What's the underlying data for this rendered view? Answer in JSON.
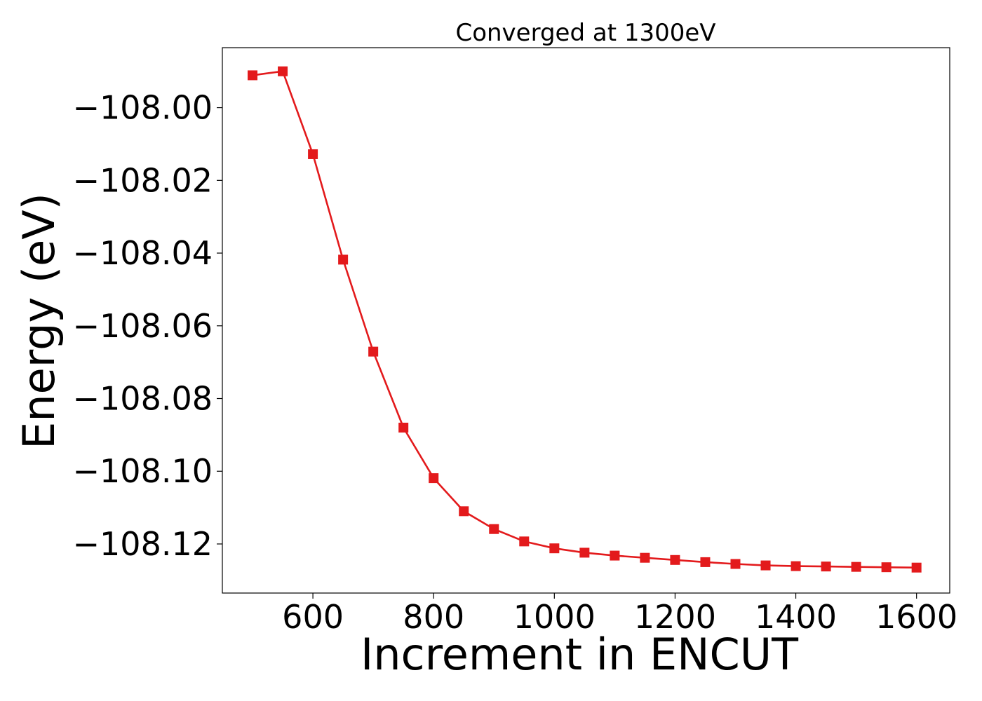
{
  "chart_data": {
    "type": "line",
    "title": "Converged at 1300eV",
    "xlabel": "Increment in ENCUT",
    "ylabel": "Energy (eV)",
    "xlim": [
      450,
      1655
    ],
    "ylim": [
      -108.1335,
      -107.9835
    ],
    "x_ticks": [
      600,
      800,
      1000,
      1200,
      1400,
      1600
    ],
    "x_tick_labels": [
      "600",
      "800",
      "1000",
      "1200",
      "1400",
      "1600"
    ],
    "y_ticks": [
      -108.0,
      -108.02,
      -108.04,
      -108.06,
      -108.08,
      -108.1,
      -108.12
    ],
    "y_tick_labels": [
      "−108.00",
      "−108.02",
      "−108.04",
      "−108.06",
      "−108.08",
      "−108.10",
      "−108.12"
    ],
    "grid": false,
    "series": [
      {
        "color": "#e31a1c",
        "marker": "square",
        "x": [
          500,
          550,
          600,
          650,
          700,
          750,
          800,
          850,
          900,
          950,
          1000,
          1050,
          1100,
          1150,
          1200,
          1250,
          1300,
          1350,
          1400,
          1450,
          1500,
          1550,
          1600
        ],
        "y": [
          -107.9911,
          -107.99,
          -108.0128,
          -108.0418,
          -108.0671,
          -108.088,
          -108.1019,
          -108.111,
          -108.1159,
          -108.1193,
          -108.1212,
          -108.1224,
          -108.1232,
          -108.1238,
          -108.1244,
          -108.125,
          -108.1255,
          -108.1259,
          -108.1261,
          -108.1262,
          -108.1263,
          -108.1264,
          -108.1265
        ]
      }
    ]
  }
}
